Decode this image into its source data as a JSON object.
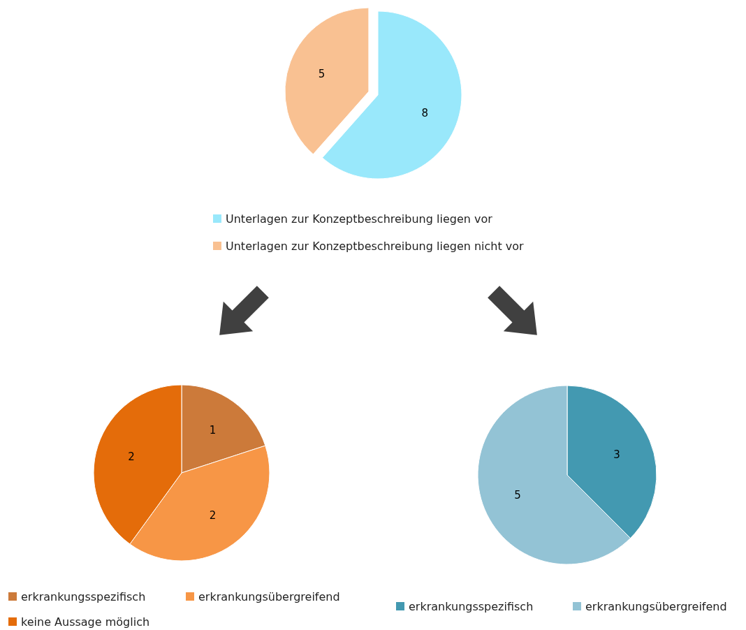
{
  "chart_data": [
    {
      "type": "pie",
      "categories": [
        "Unterlagen zur Konzeptbeschreibung liegen vor",
        "Unterlagen zur Konzeptbeschreibung liegen nicht vor"
      ],
      "values": [
        8,
        5
      ],
      "colors": [
        "#99e8fb",
        "#f9c192"
      ],
      "data_labels": true,
      "legend": "bottom"
    },
    {
      "type": "pie",
      "categories": [
        "erkrankungsspezifisch",
        "erkrankungsübergreifend",
        "keine Aussage möglich"
      ],
      "values": [
        1,
        2,
        2
      ],
      "colors": [
        "#cc7a3a",
        "#f79646",
        "#e46c0a"
      ],
      "data_labels": true,
      "legend": "bottom"
    },
    {
      "type": "pie",
      "categories": [
        "erkrankungsspezifisch",
        "erkrankungsübergreifend"
      ],
      "values": [
        3,
        5
      ],
      "colors": [
        "#4399b1",
        "#93c3d5"
      ],
      "data_labels": true,
      "legend": "bottom"
    }
  ]
}
